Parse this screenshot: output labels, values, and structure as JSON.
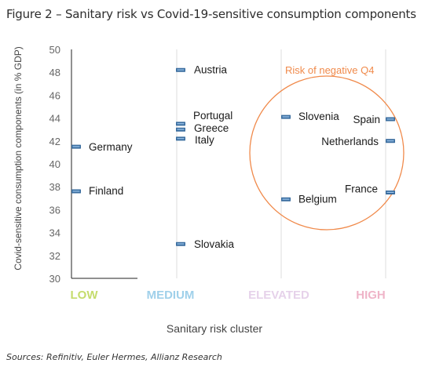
{
  "figure_title": "Figure 2 – Sanitary risk vs Covid-19-sensitive consumption components",
  "source_note": "Sources: Refinitiv, Euler Hermes, Allianz Research",
  "colors": {
    "marker": "#3a6d9f",
    "marker_highlight": "#9cc4ea",
    "low": "#c5dc6c",
    "medium": "#9fd0ea",
    "elevated": "#e6d2ea",
    "high": "#efb4c8",
    "circle": "#f08a4b",
    "axis": "#222222",
    "divider": "#dddddd"
  },
  "chart_data": {
    "type": "scatter",
    "xlabel": "Sanitary risk cluster",
    "ylabel": "Covid-sensitive consumption components  (in % GDP)",
    "ylim": [
      30,
      50
    ],
    "yticks": [
      30,
      32,
      34,
      36,
      38,
      40,
      42,
      44,
      46,
      48,
      50
    ],
    "grid": false,
    "categories": [
      "LOW",
      "MEDIUM",
      "ELEVATED",
      "HIGH"
    ],
    "points": [
      {
        "label": "Germany",
        "cluster": "LOW",
        "y": 41.5
      },
      {
        "label": "Finland",
        "cluster": "LOW",
        "y": 37.6
      },
      {
        "label": "Austria",
        "cluster": "MEDIUM",
        "y": 48.2
      },
      {
        "label": "Portugal",
        "cluster": "MEDIUM",
        "y": 43.5
      },
      {
        "label": "Greece",
        "cluster": "MEDIUM",
        "y": 43.0
      },
      {
        "label": "Italy",
        "cluster": "MEDIUM",
        "y": 42.2
      },
      {
        "label": "Slovakia",
        "cluster": "MEDIUM",
        "y": 33.0
      },
      {
        "label": "Slovenia",
        "cluster": "ELEVATED",
        "y": 44.1
      },
      {
        "label": "Belgium",
        "cluster": "ELEVATED",
        "y": 36.9
      },
      {
        "label": "Spain",
        "cluster": "HIGH",
        "y": 43.9
      },
      {
        "label": "Netherlands",
        "cluster": "HIGH",
        "y": 42.0
      },
      {
        "label": "France",
        "cluster": "HIGH",
        "y": 37.5
      }
    ],
    "annotations": [
      {
        "text": "Risk of negative Q4"
      }
    ]
  }
}
